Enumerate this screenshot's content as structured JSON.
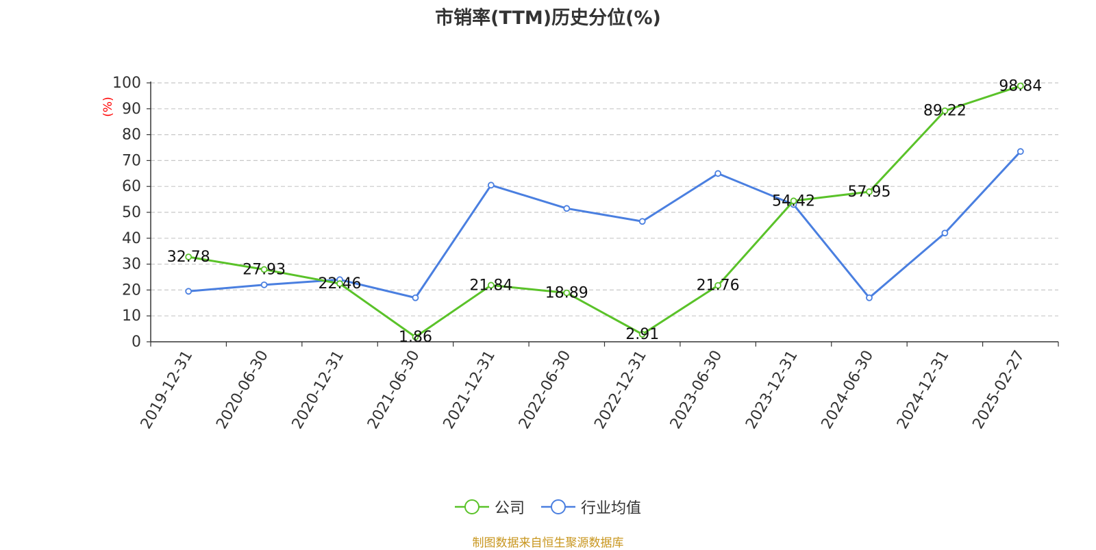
{
  "title": "市销率(TTM)历史分位(%)",
  "source_note": "制图数据来自恒生聚源数据库",
  "colors": {
    "company": "#5ac229",
    "industry": "#4a7fe0",
    "ylabel": "#ff0000",
    "source": "#c8961e"
  },
  "chart_data": {
    "type": "line",
    "title": "市销率(TTM)历史分位(%)",
    "xlabel": "",
    "ylabel": "(%)",
    "ylim": [
      0,
      100
    ],
    "yticks": [
      0,
      10,
      20,
      30,
      40,
      50,
      60,
      70,
      80,
      90,
      100
    ],
    "grid": true,
    "legend_position": "bottom-center",
    "categories": [
      "2019-12-31",
      "2020-06-30",
      "2020-12-31",
      "2021-06-30",
      "2021-12-31",
      "2022-06-30",
      "2022-12-31",
      "2023-06-30",
      "2023-12-31",
      "2024-06-30",
      "2024-12-31",
      "2025-02-27"
    ],
    "series": [
      {
        "name": "公司",
        "color": "#5ac229",
        "values": [
          32.78,
          27.93,
          22.46,
          1.86,
          21.84,
          18.89,
          2.91,
          21.76,
          54.42,
          57.95,
          89.22,
          98.84
        ],
        "labels": [
          "32.78",
          "27.93",
          "22.46",
          "1.86",
          "21.84",
          "18.89",
          "2.91",
          "21.76",
          "54.42",
          "57.95",
          "89.22",
          "98.84"
        ]
      },
      {
        "name": "行业均值",
        "color": "#4a7fe0",
        "values": [
          19.5,
          22.0,
          24.0,
          17.0,
          60.5,
          51.5,
          46.5,
          65.0,
          53.0,
          17.0,
          42.0,
          73.5
        ]
      }
    ]
  }
}
